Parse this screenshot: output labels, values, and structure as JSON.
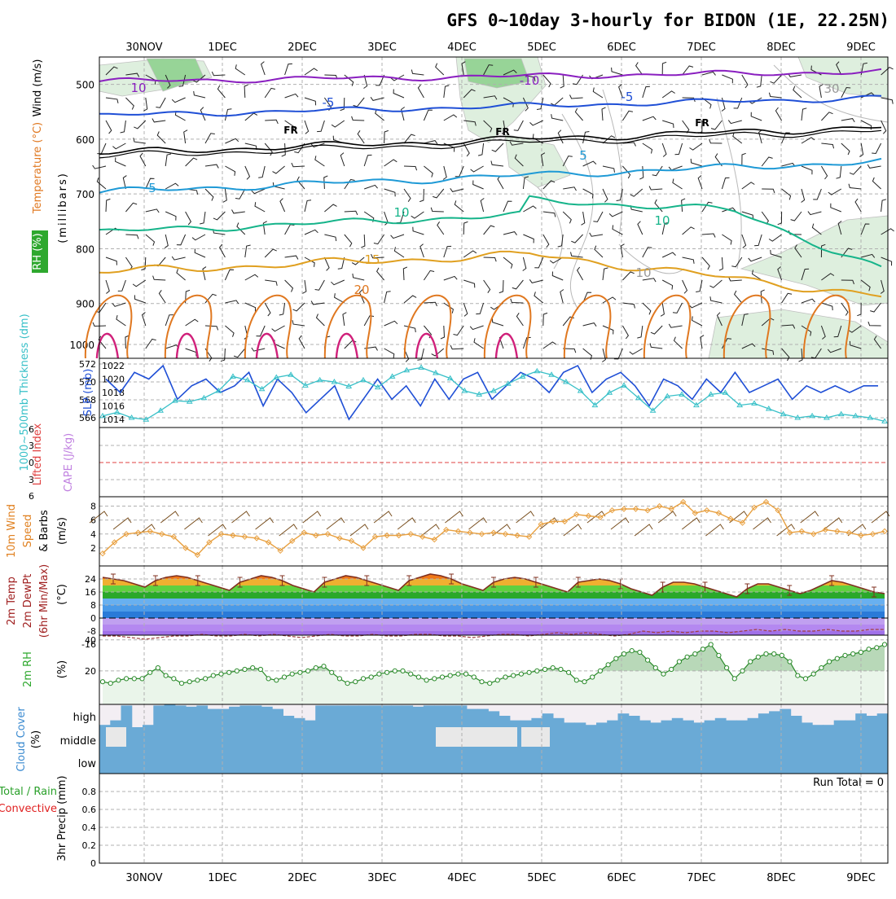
{
  "title": "GFS 0~10day 3-hourly for BIDON (1E, 22.25N)",
  "dates": [
    "30NOV",
    "1DEC",
    "2DEC",
    "3DEC",
    "4DEC",
    "5DEC",
    "6DEC",
    "7DEC",
    "8DEC",
    "9DEC"
  ],
  "colors": {
    "grid": "#b0b0b0",
    "purple": "#8a1fc0",
    "blue": "#1f4fd6",
    "black": "#000000",
    "lightblue": "#1f9ad6",
    "teal": "#16b48a",
    "gold": "#e0a020",
    "orange": "#e07820",
    "magenta": "#d0207a",
    "rh_green": "#2ea82e",
    "cloud": "#6aaad6",
    "precip_green": "#2aa02a",
    "precip_red": "#e02020"
  },
  "chart_data": [
    {
      "id": "upper-air",
      "type": "contour",
      "ylabel_parts": {
        "rh": "RH (%)",
        "temp": "Temperature (°C)",
        "wind": "Wind (m/s)",
        "unit": "(millibars)"
      },
      "yticks": [
        500,
        600,
        700,
        800,
        900,
        1000
      ],
      "ylim": [
        450,
        1000
      ],
      "contour_labels": [
        "10",
        "-10",
        "-5",
        "-5",
        "FR",
        "FR",
        "FR",
        "5",
        "5",
        "10",
        "10",
        "15",
        "20",
        "30",
        "10"
      ]
    },
    {
      "id": "slp-thickness",
      "type": "line",
      "ylabel_left": "1000~500mb Thickness (dm)",
      "ylabel_right": "SLP (mb)",
      "yticks_left": [
        566,
        568,
        570,
        572
      ],
      "yticks_right": [
        1014,
        1016,
        1018,
        1020,
        1022
      ],
      "series": [
        {
          "name": "SLP",
          "values": [
            1020,
            1018,
            1021,
            1020,
            1022,
            1017,
            1019,
            1020,
            1018,
            1019,
            1021,
            1016,
            1020,
            1018,
            1015,
            1017,
            1019,
            1014,
            1017,
            1020,
            1017,
            1019,
            1016,
            1020,
            1017,
            1020,
            1021,
            1017,
            1019,
            1021,
            1020,
            1018,
            1021,
            1022,
            1018,
            1020,
            1021,
            1019,
            1016,
            1020,
            1019,
            1017,
            1020,
            1018,
            1021,
            1018,
            1019,
            1020,
            1017,
            1019,
            1018,
            1019,
            1018,
            1019,
            1019
          ]
        },
        {
          "name": "Thickness",
          "values": [
            566.2,
            566.6,
            566.0,
            565.8,
            566.8,
            567.9,
            567.8,
            568.2,
            569.0,
            570.6,
            570.2,
            569.2,
            570.5,
            570.8,
            569.6,
            570.2,
            570.0,
            569.5,
            570.2,
            569.4,
            570.6,
            571.3,
            571.6,
            571.0,
            570.4,
            569.0,
            568.6,
            569.0,
            569.8,
            570.6,
            571.2,
            570.8,
            570.0,
            569.0,
            567.4,
            568.8,
            569.6,
            568.2,
            566.8,
            568.4,
            568.6,
            567.4,
            568.6,
            568.8,
            567.4,
            567.6,
            567.0,
            566.4,
            566.0,
            566.2,
            566.0,
            566.4,
            566.2,
            566.0,
            565.6
          ]
        }
      ]
    },
    {
      "id": "cape-li",
      "type": "line",
      "ylabel_left": "Lifted Index",
      "ylabel_right": "CAPE (J/kg)",
      "yticks": [
        "6",
        "3",
        "0",
        "3",
        "6"
      ]
    },
    {
      "id": "wind10m",
      "type": "line",
      "ylabel": "10m Wind Speed & Barbs (m/s)",
      "ylabel_parts": {
        "a": "10m Wind",
        "b": "Speed",
        "c": "& Barbs",
        "unit": "(m/s)"
      },
      "yticks": [
        2,
        4,
        6,
        8
      ],
      "ylim": [
        0,
        9
      ],
      "values": [
        1.2,
        2.8,
        4.0,
        4.2,
        4.4,
        4.0,
        3.6,
        2.0,
        1.0,
        2.8,
        4.0,
        3.8,
        3.6,
        3.4,
        2.8,
        1.6,
        3.0,
        4.2,
        3.8,
        4.0,
        3.4,
        3.0,
        2.0,
        3.6,
        3.8,
        3.8,
        4.0,
        3.6,
        3.2,
        4.6,
        4.4,
        4.2,
        4.0,
        4.2,
        4.0,
        3.8,
        3.6,
        5.4,
        5.8,
        5.8,
        6.8,
        6.6,
        6.4,
        7.4,
        7.6,
        7.6,
        7.4,
        8.0,
        7.6,
        8.6,
        7.0,
        7.4,
        7.0,
        6.2,
        5.6,
        7.8,
        8.6,
        7.4,
        4.2,
        4.4,
        4.0,
        4.6,
        4.4,
        4.2,
        3.8,
        4.0,
        4.4
      ]
    },
    {
      "id": "temp2m",
      "type": "area",
      "ylabel_parts": {
        "a": "2m Temp",
        "b": "2m DewPt",
        "c": "(6hr Min/Max)",
        "unit": "(°C)"
      },
      "yticks": [
        -16,
        -8,
        0,
        8,
        16,
        24
      ],
      "ylim": [
        -18,
        28
      ],
      "temp": [
        25,
        24,
        23,
        21,
        19,
        23,
        25,
        26,
        25,
        23,
        21,
        19,
        17,
        22,
        24,
        26,
        25,
        23,
        20,
        18,
        16,
        22,
        24,
        26,
        25,
        23,
        21,
        19,
        17,
        23,
        25,
        27,
        26,
        24,
        21,
        19,
        17,
        22,
        24,
        25,
        24,
        22,
        20,
        18,
        16,
        22,
        23,
        24,
        23,
        21,
        18,
        16,
        14,
        19,
        22,
        22,
        21,
        19,
        17,
        15,
        13,
        18,
        21,
        21,
        19,
        17,
        15,
        17,
        20,
        23,
        22,
        20,
        18,
        16,
        15
      ],
      "dewpt": [
        -11,
        -11,
        -12,
        -13,
        -12,
        -11,
        -11,
        -10,
        -11,
        -11,
        -10,
        -11,
        -10,
        -11,
        -12,
        -11,
        -10,
        -11,
        -11,
        -10,
        -11,
        -11,
        -10,
        -10,
        -11,
        -11,
        -12,
        -11,
        -10,
        -10,
        -11,
        -10,
        -9,
        -10,
        -9,
        -10,
        -11,
        -10,
        -8,
        -9,
        -8,
        -9,
        -8,
        -8,
        -9,
        -8,
        -7,
        -8,
        -7,
        -8,
        -8,
        -7,
        -8,
        -8,
        -7,
        -7
      ]
    },
    {
      "id": "rh2m",
      "type": "area",
      "ylabel_parts": {
        "a": "2m RH",
        "unit": "(%)"
      },
      "yticks": [
        20,
        40
      ],
      "ylim": [
        0,
        42
      ],
      "values": [
        13,
        12,
        14,
        15,
        15,
        15,
        19,
        22,
        17,
        15,
        12,
        13,
        14,
        15,
        17,
        18,
        19,
        20,
        21,
        22,
        21,
        15,
        14,
        16,
        18,
        19,
        20,
        22,
        23,
        19,
        15,
        12,
        13,
        15,
        16,
        18,
        19,
        20,
        20,
        18,
        16,
        14,
        15,
        16,
        17,
        18,
        18,
        16,
        13,
        12,
        14,
        16,
        17,
        18,
        19,
        20,
        21,
        22,
        21,
        19,
        14,
        13,
        16,
        20,
        24,
        28,
        31,
        33,
        32,
        27,
        22,
        18,
        21,
        26,
        29,
        31,
        34,
        37,
        30,
        22,
        15,
        20,
        26,
        29,
        31,
        31,
        30,
        26,
        17,
        15,
        18,
        22,
        26,
        28,
        30,
        31,
        32,
        34,
        35,
        37
      ]
    },
    {
      "id": "cloud",
      "type": "bar",
      "ylabel": "Cloud Cover (%)",
      "ylabel_parts": {
        "a": "Cloud Cover",
        "unit": "(%)"
      },
      "levels": [
        "high",
        "middle",
        "low"
      ]
    },
    {
      "id": "precip",
      "type": "bar",
      "ylabel_parts": {
        "a": "Total / Rain",
        "b": "Convective",
        "unit": "3hr Precip (mm)"
      },
      "yticks": [
        "0",
        "0.2",
        "0.4",
        "0.6",
        "0.8"
      ],
      "ylim": [
        0,
        1
      ],
      "run_total_label": "Run Total = 0",
      "values": []
    }
  ]
}
